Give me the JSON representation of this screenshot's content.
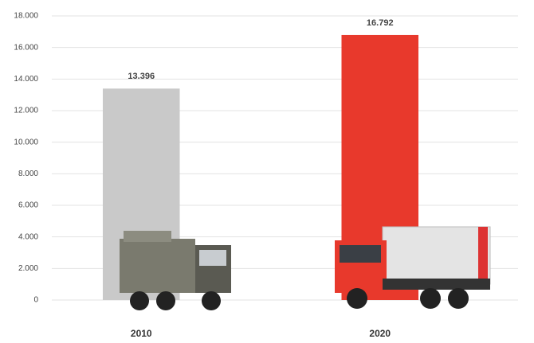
{
  "chart_data": {
    "type": "bar",
    "categories": [
      "2010",
      "2020"
    ],
    "values": [
      13396,
      16792
    ],
    "value_labels": [
      "13.396",
      "16.792"
    ],
    "colors": [
      "#c9c9c9",
      "#e8392c"
    ],
    "ylim": [
      0,
      18000
    ],
    "yticks": [
      0,
      {
        "value": 2000,
        "label": "2.000"
      },
      {
        "value": 4000,
        "label": "4.000"
      },
      {
        "value": 6000,
        "label": "6.000"
      },
      {
        "value": 8000,
        "label": "8.000"
      },
      {
        "value": 10000,
        "label": "10.000"
      },
      {
        "value": 12000,
        "label": "12.000"
      },
      {
        "value": 14000,
        "label": "14.000"
      },
      {
        "value": 16000,
        "label": "16.000"
      },
      {
        "value": 18000,
        "label": "18.000"
      }
    ],
    "grid": true
  }
}
